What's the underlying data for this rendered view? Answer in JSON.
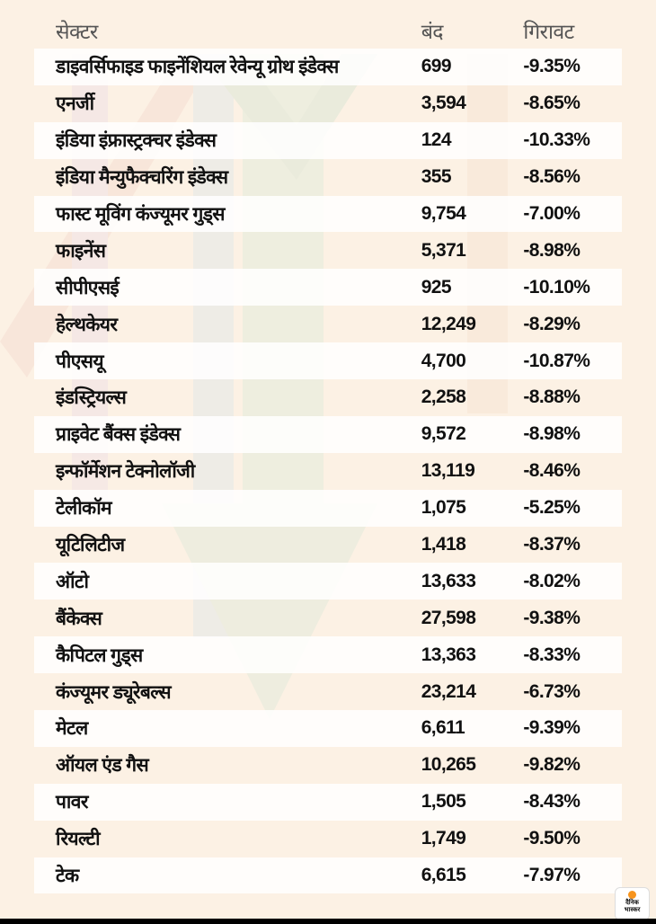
{
  "header": {
    "sector": "सेक्टर",
    "close": "बंद",
    "fall": "गिरावट"
  },
  "rows": [
    {
      "sector": "डाइवर्सिफाइड फाइनेंशियल रेवेन्यू ग्रोथ इंडेक्स",
      "close": "699",
      "fall": "-9.35%"
    },
    {
      "sector": "एनर्जी",
      "close": "3,594",
      "fall": "-8.65%"
    },
    {
      "sector": "इंडिया इंफ्रास्ट्रक्चर इंडेक्स",
      "close": "124",
      "fall": "-10.33%"
    },
    {
      "sector": "इंडिया मैन्युफैक्चरिंग इंडेक्स",
      "close": "355",
      "fall": "-8.56%"
    },
    {
      "sector": "फास्ट मूविंग कंज्यूमर गुड्स",
      "close": "9,754",
      "fall": "-7.00%"
    },
    {
      "sector": "फाइनेंस",
      "close": "5,371",
      "fall": "-8.98%"
    },
    {
      "sector": "सीपीएसई",
      "close": "925",
      "fall": "-10.10%"
    },
    {
      "sector": "हेल्थकेयर",
      "close": "12,249",
      "fall": "-8.29%"
    },
    {
      "sector": "पीएसयू",
      "close": "4,700",
      "fall": "-10.87%"
    },
    {
      "sector": "इंडस्ट्रियल्स",
      "close": "2,258",
      "fall": "-8.88%"
    },
    {
      "sector": "प्राइवेट बैंक्स इंडेक्स",
      "close": "9,572",
      "fall": "-8.98%"
    },
    {
      "sector": "इन्फॉर्मेशन टेक्नोलॉजी",
      "close": "13,119",
      "fall": "-8.46%"
    },
    {
      "sector": "टेलीकॉम",
      "close": "1,075",
      "fall": "-5.25%"
    },
    {
      "sector": "यूटिलिटीज",
      "close": "1,418",
      "fall": "-8.37%"
    },
    {
      "sector": "ऑटो",
      "close": "13,633",
      "fall": "-8.02%"
    },
    {
      "sector": "बैंकेक्स",
      "close": "27,598",
      "fall": "-9.38%"
    },
    {
      "sector": "कैपिटल गुड्स",
      "close": "13,363",
      "fall": "-8.33%"
    },
    {
      "sector": "कंज्यूमर ड्यूरेबल्स",
      "close": "23,214",
      "fall": "-6.73%"
    },
    {
      "sector": "मेटल",
      "close": "6,611",
      "fall": "-9.39%"
    },
    {
      "sector": "ऑयल एंड गैस",
      "close": "10,265",
      "fall": "-9.82%"
    },
    {
      "sector": "पावर",
      "close": "1,505",
      "fall": "-8.43%"
    },
    {
      "sector": "रियल्टी",
      "close": "1,749",
      "fall": "-9.50%"
    },
    {
      "sector": "टेक",
      "close": "6,615",
      "fall": "-7.97%"
    }
  ],
  "logo": {
    "line1": "दैनिक",
    "line2": "भास्कर"
  },
  "colors": {
    "background": "#fcf1e4",
    "accent": "#f7941d"
  }
}
